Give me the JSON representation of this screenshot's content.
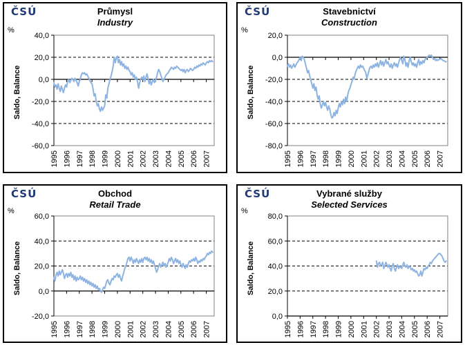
{
  "common": {
    "logo_text": "ČSÚ",
    "logo_color": "#1F3876",
    "unit": "%",
    "ylabel": "Saldo, Balance",
    "line_color": "#8DB3E2",
    "grid_color": "#000000",
    "plot_border_color": "#808080"
  },
  "panels": [
    {
      "title": "Průmysl",
      "subtitle": "Industry",
      "chart_data": {
        "type": "line",
        "title": "Průmysl / Industry",
        "ylabel": "Saldo, Balance",
        "unit": "%",
        "ylim": [
          -60,
          40
        ],
        "ytick_interval": 20,
        "x_range": [
          1995,
          2007.62
        ],
        "x_label_years": [
          1995,
          1996,
          1997,
          1998,
          1999,
          2000,
          2001,
          2002,
          2003,
          2004,
          2005,
          2006,
          2007
        ],
        "x_start": 1995.0,
        "x_step": 0.0833,
        "grid": "dashed horizontal",
        "legend": "none",
        "series": [
          {
            "name": "Saldo, Balance",
            "values": [
              -3,
              -7,
              -5,
              -9,
              -4,
              -8,
              -11,
              -6,
              -9,
              -12,
              -8,
              -5,
              -7,
              -2,
              0,
              -3,
              -1,
              1,
              0,
              -2,
              1,
              -1,
              -3,
              -6,
              -2,
              1,
              4,
              6,
              5,
              6,
              4,
              5,
              3,
              1,
              -1,
              -3,
              -4,
              -9,
              -15,
              -13,
              -20,
              -24,
              -22,
              -27,
              -29,
              -25,
              -28,
              -26,
              -24,
              -14,
              -17,
              -8,
              -4,
              0,
              3,
              7,
              12,
              20,
              15,
              20,
              21,
              15,
              18,
              13,
              16,
              12,
              14,
              10,
              12,
              9,
              11,
              8,
              7,
              4,
              6,
              2,
              4,
              0,
              2,
              -2,
              -8,
              -3,
              0,
              2,
              0,
              3,
              -2,
              2,
              5,
              1,
              -4,
              -1,
              -5,
              -2,
              0,
              -3,
              -1,
              2,
              6,
              9,
              7,
              4,
              1,
              -2,
              0,
              2,
              4,
              5,
              6,
              8,
              9,
              11,
              10,
              9,
              11,
              10,
              12,
              11,
              10,
              9,
              8,
              9,
              7,
              9,
              6,
              8,
              9,
              7,
              8,
              10,
              9,
              8,
              9,
              11,
              10,
              12,
              11,
              13,
              12,
              14,
              13,
              15,
              14,
              13,
              15,
              16,
              15,
              17,
              16,
              17,
              16
            ]
          }
        ]
      }
    },
    {
      "title": "Stavebnictví",
      "subtitle": "Construction",
      "chart_data": {
        "type": "line",
        "title": "Stavebnictví / Construction",
        "ylabel": "Saldo, Balance",
        "unit": "%",
        "ylim": [
          -80,
          20
        ],
        "ytick_interval": 20,
        "x_range": [
          1995,
          2007.62
        ],
        "x_label_years": [
          1995,
          1996,
          1997,
          1998,
          1999,
          2000,
          2001,
          2002,
          2003,
          2004,
          2005,
          2006,
          2007
        ],
        "x_start": 1995.0,
        "x_step": 0.0833,
        "grid": "dashed horizontal",
        "legend": "none",
        "series": [
          {
            "name": "Saldo, Balance",
            "values": [
              -8,
              -6,
              -9,
              -7,
              -10,
              -8,
              -6,
              -9,
              -7,
              -5,
              -4,
              -2,
              0,
              -3,
              1,
              0,
              -2,
              -6,
              -10,
              -14,
              -12,
              -17,
              -20,
              -24,
              -28,
              -24,
              -30,
              -27,
              -34,
              -38,
              -35,
              -42,
              -46,
              -43,
              -40,
              -44,
              -41,
              -45,
              -48,
              -44,
              -47,
              -52,
              -55,
              -54,
              -50,
              -53,
              -48,
              -51,
              -46,
              -42,
              -45,
              -40,
              -43,
              -38,
              -42,
              -36,
              -40,
              -34,
              -30,
              -28,
              -25,
              -22,
              -18,
              -20,
              -15,
              -12,
              -10,
              -8,
              -10,
              -7,
              -9,
              -8,
              -10,
              -12,
              -14,
              -19,
              -16,
              -12,
              -9,
              -8,
              -10,
              -7,
              -9,
              -6,
              -8,
              -5,
              -9,
              -6,
              -3,
              -7,
              -4,
              -8,
              -5,
              -2,
              -6,
              -4,
              -7,
              -9,
              -6,
              -10,
              -7,
              -5,
              -8,
              -6,
              -9,
              -5,
              -2,
              0,
              -3,
              -6,
              1,
              -2,
              -8,
              -5,
              -9,
              -3,
              0,
              -4,
              -7,
              -5,
              -8,
              -6,
              -9,
              -5,
              -2,
              -7,
              -4,
              -6,
              -3,
              -5,
              -2,
              -1,
              0,
              1,
              2,
              1,
              2,
              0,
              -2,
              -1,
              -3,
              -2,
              -3,
              -2,
              -2,
              -1,
              -2,
              -3,
              -3,
              -4,
              -4
            ]
          }
        ]
      }
    },
    {
      "title": "Obchod",
      "subtitle": "Retail Trade",
      "chart_data": {
        "type": "line",
        "title": "Obchod / Retail Trade",
        "ylabel": "Saldo, Balance",
        "unit": "%",
        "ylim": [
          -20,
          60
        ],
        "ytick_interval": 20,
        "x_range": [
          1995,
          2007.62
        ],
        "x_label_years": [
          1995,
          1996,
          1997,
          1998,
          1999,
          2000,
          2001,
          2002,
          2003,
          2004,
          2005,
          2006,
          2007
        ],
        "x_start": 1995.0,
        "x_step": 0.0833,
        "grid": "dashed horizontal",
        "legend": "none",
        "series": [
          {
            "name": "Saldo, Balance",
            "values": [
              11,
              8,
              13,
              15,
              12,
              16,
              13,
              15,
              17,
              14,
              10,
              13,
              14,
              11,
              14,
              12,
              15,
              11,
              13,
              9,
              12,
              8,
              11,
              9,
              10,
              12,
              9,
              11,
              8,
              10,
              7,
              9,
              6,
              8,
              5,
              7,
              4,
              6,
              3,
              5,
              2,
              4,
              1,
              2,
              0,
              -1,
              1,
              3,
              2,
              5,
              8,
              9,
              6,
              5,
              8,
              10,
              9,
              12,
              11,
              13,
              14,
              11,
              13,
              10,
              8,
              12,
              15,
              18,
              20,
              23,
              26,
              27,
              24,
              27,
              25,
              22,
              25,
              23,
              26,
              24,
              22,
              25,
              23,
              26,
              23,
              26,
              27,
              25,
              27,
              24,
              26,
              23,
              25,
              22,
              24,
              21,
              18,
              15,
              17,
              20,
              22,
              19,
              21,
              23,
              20,
              22,
              19,
              21,
              23,
              26,
              24,
              27,
              25,
              22,
              24,
              26,
              23,
              25,
              22,
              24,
              21,
              19,
              22,
              20,
              18,
              21,
              19,
              22,
              24,
              23,
              25,
              24,
              26,
              24,
              27,
              25,
              22,
              24,
              23,
              25,
              24,
              26,
              25,
              27,
              28,
              30,
              29,
              31,
              30,
              32,
              31
            ]
          }
        ]
      }
    },
    {
      "title": "Vybrané služby",
      "subtitle": "Selected Services",
      "chart_data": {
        "type": "line",
        "title": "Vybrané služby / Selected Services",
        "ylabel": "Saldo, Balance",
        "unit": "%",
        "ylim": [
          0,
          80
        ],
        "ytick_interval": 20,
        "x_range": [
          1995,
          2007.62
        ],
        "x_label_years": [
          1995,
          1996,
          1997,
          1998,
          1999,
          2000,
          2001,
          2002,
          2003,
          2004,
          2005,
          2006,
          2007
        ],
        "x_start": 2002.0,
        "x_step": 0.0833,
        "grid": "dashed horizontal",
        "legend": "none",
        "series": [
          {
            "name": "Saldo, Balance",
            "values": [
              44,
              39,
              42,
              43,
              40,
              41,
              43,
              38,
              40,
              43,
              41,
              39,
              41,
              38,
              36,
              40,
              42,
              38,
              36,
              39,
              41,
              38,
              40,
              39,
              38,
              41,
              43,
              40,
              39,
              41,
              38,
              40,
              39,
              37,
              38,
              36,
              37,
              35,
              36,
              34,
              32,
              33,
              36,
              32,
              35,
              38,
              37,
              39,
              38,
              40,
              41,
              43,
              42,
              44,
              45,
              46,
              47,
              48,
              49,
              50,
              50,
              49,
              48,
              46,
              44,
              43,
              44
            ]
          }
        ]
      }
    }
  ]
}
